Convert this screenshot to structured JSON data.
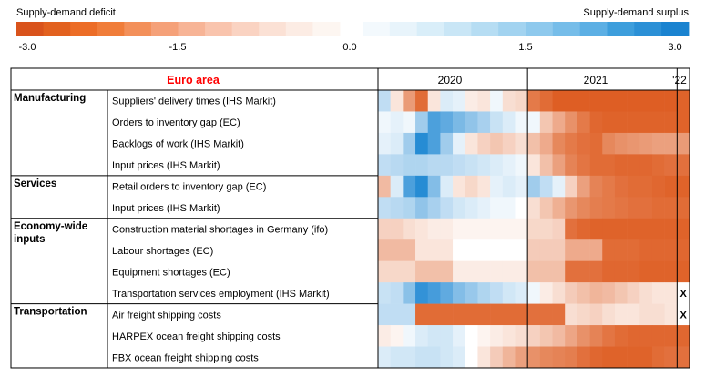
{
  "chart_data": {
    "type": "heatmap",
    "title": "Euro area",
    "legend": {
      "left_label": "Supply-demand deficit",
      "right_label": "Supply-demand surplus",
      "ticks": [
        "-3.0",
        "-1.5",
        "0.0",
        "1.5",
        "3.0"
      ],
      "deficit_colors": [
        "#d9531c",
        "#e2611f",
        "#ec6d27",
        "#f07d3a",
        "#f3905a",
        "#f5a179",
        "#f7b496",
        "#f9c4ad",
        "#fad3c2",
        "#fbe1d5",
        "#fcece4",
        "#fdf6f1"
      ],
      "surplus_colors": [
        "#f3f9fd",
        "#e8f4fb",
        "#d9eef9",
        "#c9e6f6",
        "#b6ddf3",
        "#a2d3f0",
        "#8ec9ed",
        "#76bde9",
        "#5cafe4",
        "#3d9edc",
        "#2b90d6",
        "#1a83d0"
      ]
    },
    "period_headers": [
      "2020",
      "2021",
      "'22"
    ],
    "months_per_year": {
      "2020": 12,
      "2021": 12,
      "2022": 1
    },
    "groups": [
      {
        "label": "Manufacturing",
        "rows": 4
      },
      {
        "label": "Services",
        "rows": 2
      },
      {
        "label": "Economy-wide inputs",
        "rows": 4
      },
      {
        "label": "Transportation",
        "rows": 3
      }
    ],
    "rows": [
      {
        "label": "Suppliers' delivery times (IHS Markit)",
        "values": [
          0.6,
          -0.3,
          -1.6,
          -2.6,
          -0.3,
          0.3,
          0.2,
          -0.2,
          -0.3,
          0.1,
          -0.4,
          -0.5,
          -2.3,
          -2.6,
          -2.9,
          -2.9,
          -2.9,
          -2.9,
          -2.9,
          -2.9,
          -2.9,
          -2.9,
          -2.9,
          -2.9,
          -2.8
        ]
      },
      {
        "label": "Orders to inventory gap (EC)",
        "values": [
          0.1,
          0.2,
          0.1,
          1.0,
          2.2,
          1.9,
          1.5,
          1.2,
          0.9,
          0.5,
          0.3,
          0.1,
          0.1,
          -0.8,
          -1.3,
          -1.8,
          -2.3,
          -2.7,
          -2.8,
          -2.8,
          -2.8,
          -2.8,
          -2.8,
          -2.8,
          -2.8
        ]
      },
      {
        "label": "Backlogs of work (IHS Markit)",
        "values": [
          0.2,
          0.3,
          1.0,
          2.8,
          2.2,
          1.0,
          0.2,
          -0.3,
          -0.6,
          -0.8,
          -0.6,
          -0.4,
          -0.9,
          -1.3,
          -2.0,
          -2.3,
          -2.5,
          -2.6,
          -2.0,
          -1.8,
          -1.7,
          -1.6,
          -1.5,
          -1.5,
          -1.6
        ]
      },
      {
        "label": "Input prices (IHS Markit)",
        "values": [
          0.6,
          0.7,
          0.8,
          0.8,
          0.7,
          0.7,
          0.6,
          0.5,
          0.4,
          0.3,
          0.2,
          0.1,
          -0.3,
          -0.9,
          -1.5,
          -2.1,
          -2.4,
          -2.6,
          -2.6,
          -2.7,
          -2.7,
          -2.7,
          -2.6,
          -2.5,
          -2.5
        ]
      },
      {
        "label": "Retail orders to inventory gap (EC)",
        "values": [
          -1.0,
          0.3,
          2.2,
          2.8,
          1.4,
          0.3,
          -0.3,
          -0.5,
          -0.3,
          0.2,
          0.3,
          0.2,
          1.0,
          0.6,
          0.2,
          -0.6,
          -1.5,
          -2.1,
          -2.3,
          -2.5,
          -2.6,
          -2.6,
          -2.7,
          -2.8,
          -2.8
        ]
      },
      {
        "label": "Input prices (IHS Markit)",
        "values": [
          0.6,
          0.7,
          0.8,
          1.2,
          0.9,
          0.6,
          0.4,
          0.3,
          0.2,
          0.1,
          0.1,
          0.0,
          -0.4,
          -0.8,
          -1.2,
          -1.7,
          -2.0,
          -2.2,
          -2.3,
          -2.4,
          -2.5,
          -2.5,
          -2.6,
          -2.6,
          -2.6
        ]
      },
      {
        "label": "Construction material shortages in Germany (ifo)",
        "values": [
          -0.6,
          -0.6,
          -0.4,
          -0.3,
          -0.2,
          -0.2,
          -0.1,
          -0.1,
          -0.1,
          -0.1,
          -0.1,
          -0.1,
          -0.5,
          -0.5,
          -0.6,
          -2.5,
          -2.7,
          -2.8,
          -2.8,
          -2.8,
          -2.8,
          -2.8,
          -2.8,
          -2.8,
          -2.8
        ]
      },
      {
        "label": "Labour shortages (EC)",
        "values": [
          -1.0,
          -1.0,
          -1.0,
          -0.3,
          -0.3,
          -0.3,
          0.0,
          0.0,
          0.0,
          0.0,
          0.0,
          0.0,
          -0.7,
          -0.7,
          -0.7,
          -1.3,
          -1.3,
          -1.3,
          -2.6,
          -2.6,
          -2.6,
          -2.7,
          -2.7,
          -2.7,
          -2.7
        ]
      },
      {
        "label": "Equipment shortages (EC)",
        "values": [
          -0.5,
          -0.5,
          -0.5,
          -0.9,
          -0.9,
          -0.9,
          -0.2,
          -0.2,
          -0.2,
          -0.2,
          -0.2,
          -0.2,
          -0.9,
          -0.9,
          -0.9,
          -2.5,
          -2.5,
          -2.5,
          -2.7,
          -2.7,
          -2.7,
          -2.8,
          -2.8,
          -2.8,
          -2.8
        ]
      },
      {
        "label": "Transportation services employment (IHS Markit)",
        "values": [
          0.5,
          0.6,
          1.3,
          2.6,
          2.3,
          1.9,
          1.4,
          1.1,
          0.8,
          0.6,
          0.4,
          0.3,
          0.1,
          -0.2,
          -0.4,
          -0.7,
          -0.9,
          -1.1,
          -1.0,
          -0.8,
          -0.6,
          -0.4,
          -0.3,
          -0.3,
          null
        ],
        "missing_marker": "X"
      },
      {
        "label": "Air freight shipping costs",
        "values": [
          0.6,
          0.6,
          0.6,
          -2.6,
          -2.6,
          -2.6,
          -2.6,
          -2.6,
          -2.6,
          -2.6,
          -2.6,
          -2.6,
          -2.5,
          -2.5,
          -2.5,
          -0.4,
          -0.5,
          -0.6,
          -0.4,
          -0.3,
          -0.3,
          -0.4,
          -0.4,
          -0.3,
          null
        ],
        "missing_marker": "X"
      },
      {
        "label": "HARPEX ocean freight shipping costs",
        "values": [
          -0.2,
          -0.1,
          0.1,
          0.3,
          0.4,
          0.4,
          0.2,
          0.0,
          -0.1,
          -0.2,
          -0.3,
          -0.4,
          -0.6,
          -0.8,
          -1.0,
          -1.4,
          -1.8,
          -2.1,
          -2.4,
          -2.6,
          -2.7,
          -2.7,
          -2.7,
          -2.7,
          -2.7
        ]
      },
      {
        "label": "FBX ocean freight shipping costs",
        "values": [
          0.3,
          0.4,
          0.4,
          0.5,
          0.5,
          0.4,
          0.3,
          0.0,
          -0.3,
          -0.7,
          -1.1,
          -1.5,
          -1.8,
          -2.0,
          -2.1,
          -2.2,
          -2.5,
          -2.7,
          -2.8,
          -2.8,
          -2.8,
          -2.8,
          -2.6,
          -2.5,
          -2.5
        ]
      }
    ],
    "colors": {
      "title": "#ff0000",
      "border": "#000000"
    }
  }
}
